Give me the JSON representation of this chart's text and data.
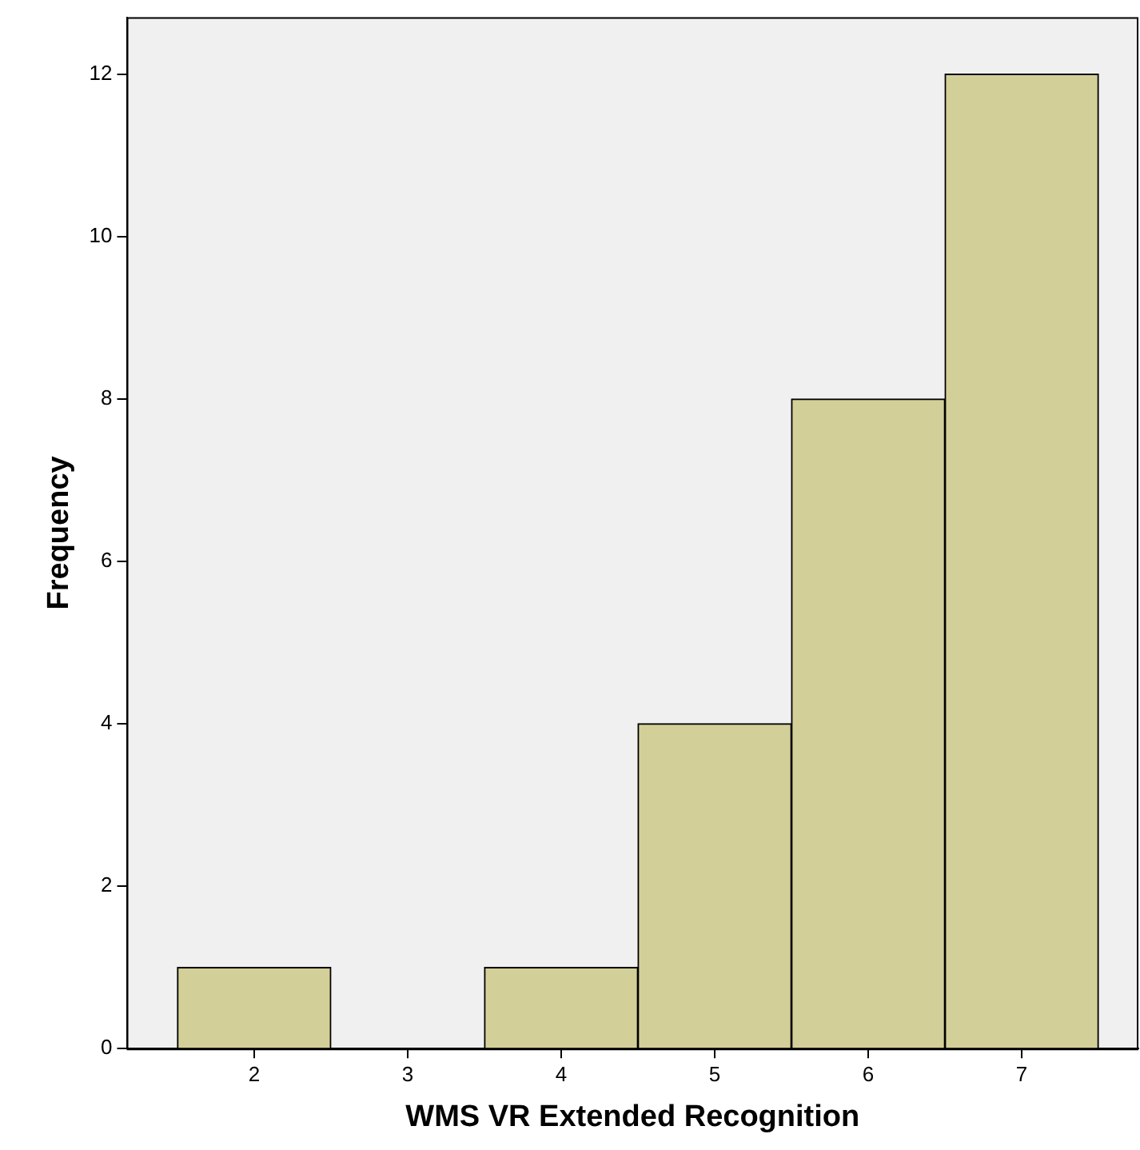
{
  "chart_data": {
    "type": "histogram",
    "xlabel": "WMS VR Extended Recognition",
    "ylabel": "Frequency",
    "bins": [
      1.5,
      2.5,
      3.5,
      4.5,
      5.5,
      6.5,
      7.5
    ],
    "values": [
      1,
      0,
      1,
      4,
      8,
      12
    ],
    "color": "#d3cf98",
    "xlim": [
      1.17,
      7.76
    ],
    "xticks": [
      2,
      3,
      4,
      5,
      6,
      7
    ],
    "ylim": [
      0,
      12.7
    ],
    "yticks": [
      0,
      2,
      4,
      6,
      8,
      10,
      12
    ],
    "grid": false,
    "legend": false
  }
}
